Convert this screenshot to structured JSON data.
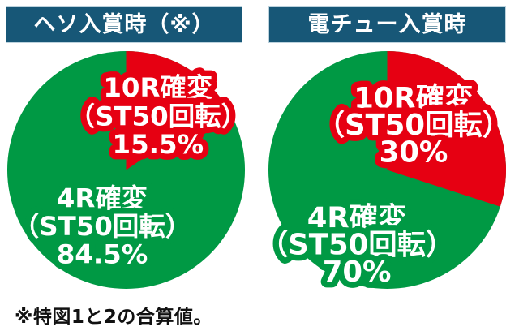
{
  "chart_data": [
    {
      "type": "pie",
      "title": "ヘソ入賞時（※）",
      "categories": [
        "10R確変（ST50回転）",
        "4R確変（ST50回転）"
      ],
      "values": [
        15.5,
        84.5
      ],
      "unit": "%",
      "colors": [
        "#e60012",
        "#009944"
      ],
      "label_lines": [
        [
          "10R確変",
          "（ST50回転）",
          "15.5%"
        ],
        [
          "4R確変",
          "（ST50回転）",
          "84.5%"
        ]
      ],
      "start_angle_deg": 0,
      "direction": "clockwise",
      "legend": "none"
    },
    {
      "type": "pie",
      "title": "電チュー入賞時",
      "categories": [
        "10R確変（ST50回転）",
        "4R確変（ST50回転）"
      ],
      "values": [
        30,
        70
      ],
      "unit": "%",
      "colors": [
        "#e60012",
        "#009944"
      ],
      "label_lines": [
        [
          "10R確変",
          "（ST50回転）",
          "30%"
        ],
        [
          "4R確変",
          "（ST50回転）",
          "70%"
        ]
      ],
      "start_angle_deg": 0,
      "direction": "clockwise",
      "legend": "none"
    }
  ],
  "footnote": "※特図1と2の合算値。",
  "colors": {
    "header_bg": "#175777",
    "header_text": "#ffffff",
    "red": "#e60012",
    "green": "#009944",
    "footnote_text": "#111111",
    "background": "#ffffff"
  }
}
